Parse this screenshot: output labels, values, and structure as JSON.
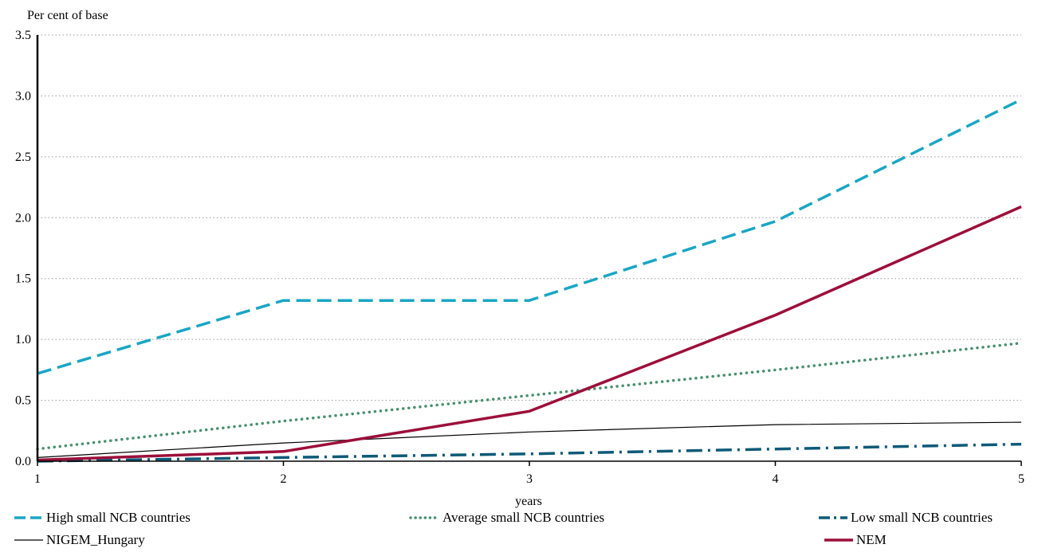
{
  "chart_data": {
    "type": "line",
    "title": "",
    "ylabel": "Per cent of base",
    "xlabel": "years",
    "x": [
      1,
      2,
      3,
      4,
      5
    ],
    "xticks": [
      "1",
      "2",
      "3",
      "4",
      "5"
    ],
    "yticks": [
      "0.0",
      "0.5",
      "1.0",
      "1.5",
      "2.0",
      "2.5",
      "3.0",
      "3.5"
    ],
    "ylim": [
      0,
      3.5
    ],
    "xlim": [
      1,
      5
    ],
    "grid": "horizontal-dotted",
    "legend_position": "bottom",
    "series": [
      {
        "name": "High small NCB countries",
        "values": [
          0.72,
          1.32,
          1.32,
          1.97,
          2.97
        ],
        "color": "#1aa6c4",
        "style": "dashed"
      },
      {
        "name": "Average small NCB countries",
        "values": [
          0.1,
          0.33,
          0.54,
          0.75,
          0.97
        ],
        "color": "#4a9070",
        "style": "dotted"
      },
      {
        "name": "Low small NCB countries",
        "values": [
          0.0,
          0.03,
          0.06,
          0.1,
          0.14
        ],
        "color": "#0d5a78",
        "style": "dashdot"
      },
      {
        "name": "NIGEM_Hungary",
        "values": [
          0.03,
          0.15,
          0.24,
          0.3,
          0.32
        ],
        "color": "#000000",
        "style": "solid-thin"
      },
      {
        "name": "NEM",
        "values": [
          0.01,
          0.08,
          0.41,
          1.2,
          2.09
        ],
        "color": "#9c0f3a",
        "style": "solid-thick"
      }
    ]
  }
}
